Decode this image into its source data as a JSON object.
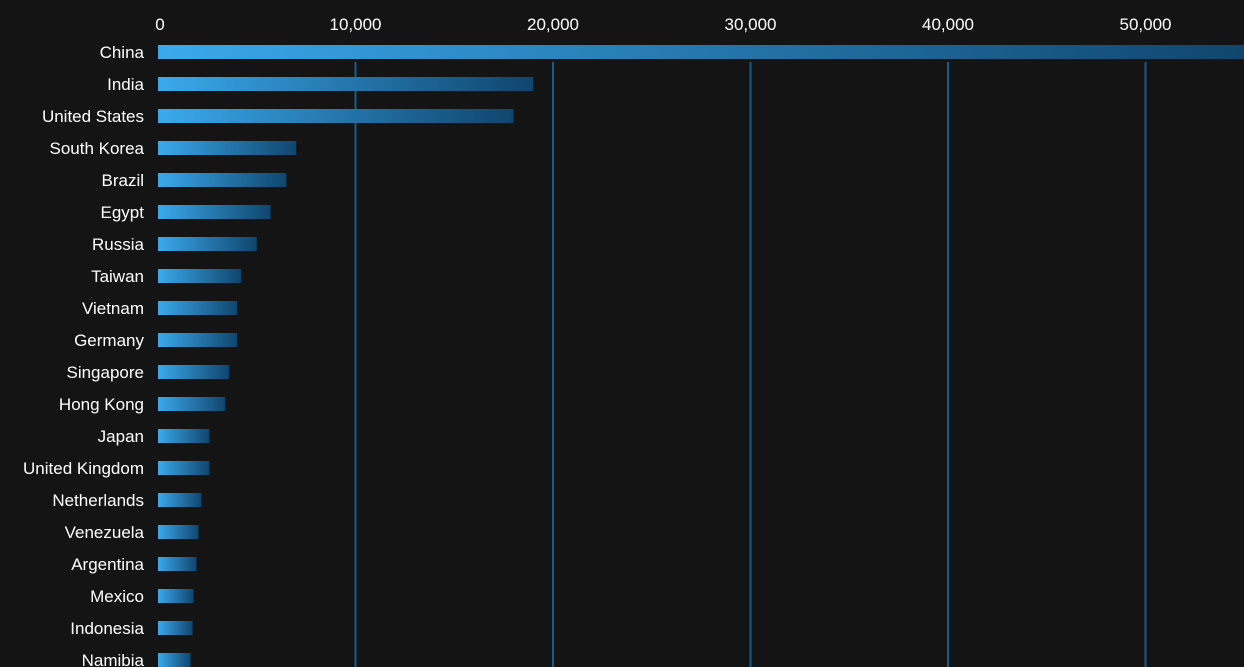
{
  "chart_data": {
    "type": "bar",
    "orientation": "horizontal",
    "title": "",
    "xlabel": "",
    "ylabel": "",
    "xlim": [
      0,
      54500
    ],
    "x_ticks": [
      0,
      10000,
      20000,
      30000,
      40000,
      50000
    ],
    "x_tick_labels": [
      "0",
      "10,000",
      "20,000",
      "30,000",
      "40,000",
      "50,000"
    ],
    "x_axis_position": "top",
    "grid": "vertical",
    "legend": "none",
    "categories": [
      "China",
      "India",
      "United States",
      "South Korea",
      "Brazil",
      "Egypt",
      "Russia",
      "Taiwan",
      "Vietnam",
      "Germany",
      "Singapore",
      "Hong Kong",
      "Japan",
      "United Kingdom",
      "Netherlands",
      "Venezuela",
      "Argentina",
      "Mexico",
      "Indonesia",
      "Namibia"
    ],
    "values": [
      55000,
      19000,
      18000,
      7000,
      6500,
      5700,
      5000,
      4200,
      4000,
      4000,
      3600,
      3400,
      2600,
      2600,
      2200,
      2050,
      1950,
      1800,
      1750,
      1650
    ],
    "colors": {
      "background": "#141414",
      "bar_start": "#3aa9ec",
      "bar_end": "#10466e",
      "gridline": "#1a5a8a",
      "text": "#ffffff"
    }
  }
}
